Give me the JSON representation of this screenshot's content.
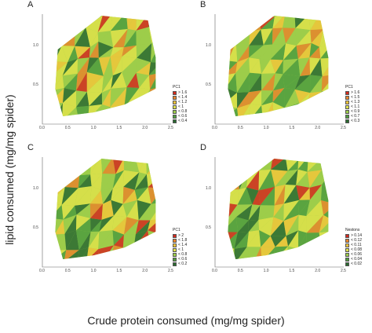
{
  "xlabel": "Crude protein consumed (mg/mg spider)",
  "ylabel": "lipid consumed (mg/mg spider)",
  "chart_data": [
    {
      "type": "heatmap",
      "panel": "A",
      "xlim": [
        0,
        2.5
      ],
      "ylim": [
        0,
        1.4
      ],
      "x_ticks": [
        "0.0",
        "0.5",
        "1.0",
        "1.5",
        "2.0",
        "2.5"
      ],
      "y_ticks": [
        "0.5",
        "1.0"
      ],
      "legend_title": "PC1",
      "legend": [
        "> 1.6",
        "< 1.4",
        "< 1.2",
        "< 1",
        "< 0.8",
        "< 0.6",
        "< 0.4"
      ],
      "colors": [
        "#d42a1e",
        "#e8852c",
        "#f2c53a",
        "#dfe24a",
        "#9dcd4a",
        "#4f9c3e",
        "#2c6a31"
      ],
      "hull": [
        [
          0.3,
          0.95
        ],
        [
          1.15,
          1.38
        ],
        [
          2.05,
          1.32
        ],
        [
          2.2,
          0.85
        ],
        [
          2.2,
          0.45
        ],
        [
          1.6,
          0.25
        ],
        [
          1.0,
          0.15
        ],
        [
          0.4,
          0.1
        ],
        [
          0.25,
          0.45
        ]
      ]
    },
    {
      "type": "heatmap",
      "panel": "B",
      "xlim": [
        0,
        2.5
      ],
      "ylim": [
        0,
        1.4
      ],
      "x_ticks": [
        "0.0",
        "0.5",
        "1.0",
        "1.5",
        "2.0",
        "2.5"
      ],
      "y_ticks": [
        "0.5",
        "1.0"
      ],
      "legend_title": "PC1",
      "legend": [
        "> 1.6",
        "< 1.5",
        "< 1.3",
        "< 1.1",
        "< 0.9",
        "< 0.7",
        "< 0.3"
      ],
      "colors": [
        "#d42a1e",
        "#e8852c",
        "#f2c53a",
        "#dfe24a",
        "#9dcd4a",
        "#4f9c3e",
        "#2c6a31"
      ],
      "hull": [
        [
          0.3,
          0.95
        ],
        [
          1.15,
          1.38
        ],
        [
          2.05,
          1.32
        ],
        [
          2.2,
          0.85
        ],
        [
          2.2,
          0.45
        ],
        [
          1.6,
          0.25
        ],
        [
          1.0,
          0.15
        ],
        [
          0.4,
          0.1
        ],
        [
          0.25,
          0.45
        ]
      ]
    },
    {
      "type": "heatmap",
      "panel": "C",
      "xlim": [
        0,
        2.5
      ],
      "ylim": [
        0,
        1.4
      ],
      "x_ticks": [
        "0.0",
        "0.5",
        "1.0",
        "1.5",
        "2.0",
        "2.5"
      ],
      "y_ticks": [
        "0.5",
        "1.0"
      ],
      "legend_title": "PC1",
      "legend": [
        "> 2",
        "< 1.8",
        "< 1.4",
        "< 1",
        "< 0.8",
        "< 0.6",
        "< 0.2"
      ],
      "colors": [
        "#d42a1e",
        "#e8852c",
        "#f2c53a",
        "#dfe24a",
        "#9dcd4a",
        "#4f9c3e",
        "#2c6a31"
      ],
      "hull": [
        [
          0.3,
          0.95
        ],
        [
          1.15,
          1.38
        ],
        [
          2.05,
          1.32
        ],
        [
          2.2,
          0.85
        ],
        [
          2.2,
          0.45
        ],
        [
          1.6,
          0.25
        ],
        [
          1.0,
          0.15
        ],
        [
          0.4,
          0.1
        ],
        [
          0.25,
          0.45
        ]
      ]
    },
    {
      "type": "heatmap",
      "panel": "D",
      "xlim": [
        0,
        2.5
      ],
      "ylim": [
        0,
        1.4
      ],
      "x_ticks": [
        "0.0",
        "0.5",
        "1.0",
        "1.5",
        "2.0",
        "2.5"
      ],
      "y_ticks": [
        "0.5",
        "1.0"
      ],
      "legend_title": "Nestons",
      "legend": [
        "> 0.14",
        "< 0.12",
        "< 0.11",
        "< 0.08",
        "< 0.06",
        "< 0.04",
        "< 0.02"
      ],
      "colors": [
        "#d42a1e",
        "#e8852c",
        "#f2c53a",
        "#dfe24a",
        "#9dcd4a",
        "#4f9c3e",
        "#2c6a31"
      ],
      "hull": [
        [
          0.3,
          0.95
        ],
        [
          1.15,
          1.38
        ],
        [
          2.05,
          1.32
        ],
        [
          2.2,
          0.85
        ],
        [
          2.2,
          0.45
        ],
        [
          1.6,
          0.25
        ],
        [
          1.0,
          0.15
        ],
        [
          0.4,
          0.1
        ],
        [
          0.25,
          0.45
        ]
      ]
    }
  ]
}
